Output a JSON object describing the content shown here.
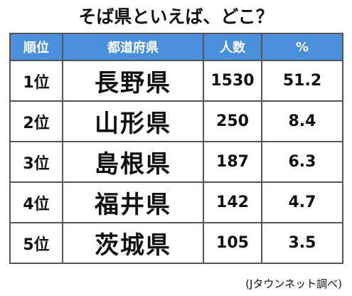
{
  "header": {
    "title": "そば県といえば、どこ？"
  },
  "table": {
    "columns": [
      "順位",
      "都道府県",
      "人数",
      "%"
    ],
    "rows": [
      [
        "1位",
        "長野県",
        1530,
        51.2
      ],
      [
        "2位",
        "山形県",
        250,
        8.4
      ],
      [
        "3位",
        "島根県",
        187,
        6.3
      ],
      [
        "4位",
        "福井県",
        142,
        4.7
      ],
      [
        "5位",
        "茨城県",
        105,
        3.5
      ]
    ]
  },
  "footer": {
    "source": "(Jタウンネット調べ)"
  }
}
